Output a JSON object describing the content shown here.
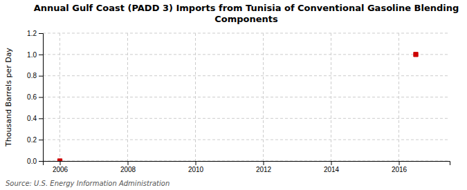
{
  "chart_data": {
    "type": "scatter",
    "title": "Annual Gulf Coast (PADD 3) Imports from Tunisia of Conventional Gasoline Blending\nComponents",
    "y_label": "Thousand Barrels per Day",
    "source": "Source: U.S. Energy Information Administration",
    "x": [
      2006,
      2016.5
    ],
    "values": [
      0.0,
      1.0
    ],
    "color": "#cc0000",
    "marker": "square",
    "xlim": [
      2005.5,
      2017.5
    ],
    "ylim": [
      0.0,
      1.2
    ],
    "xticks": [
      2006,
      2008,
      2010,
      2012,
      2014,
      2016
    ],
    "yticks": [
      {
        "value": 0.0,
        "label": "0.0"
      },
      0.2,
      0.4,
      0.6,
      0.8,
      {
        "value": 1.0,
        "label": "1.0"
      },
      1.2
    ],
    "grid": true
  }
}
